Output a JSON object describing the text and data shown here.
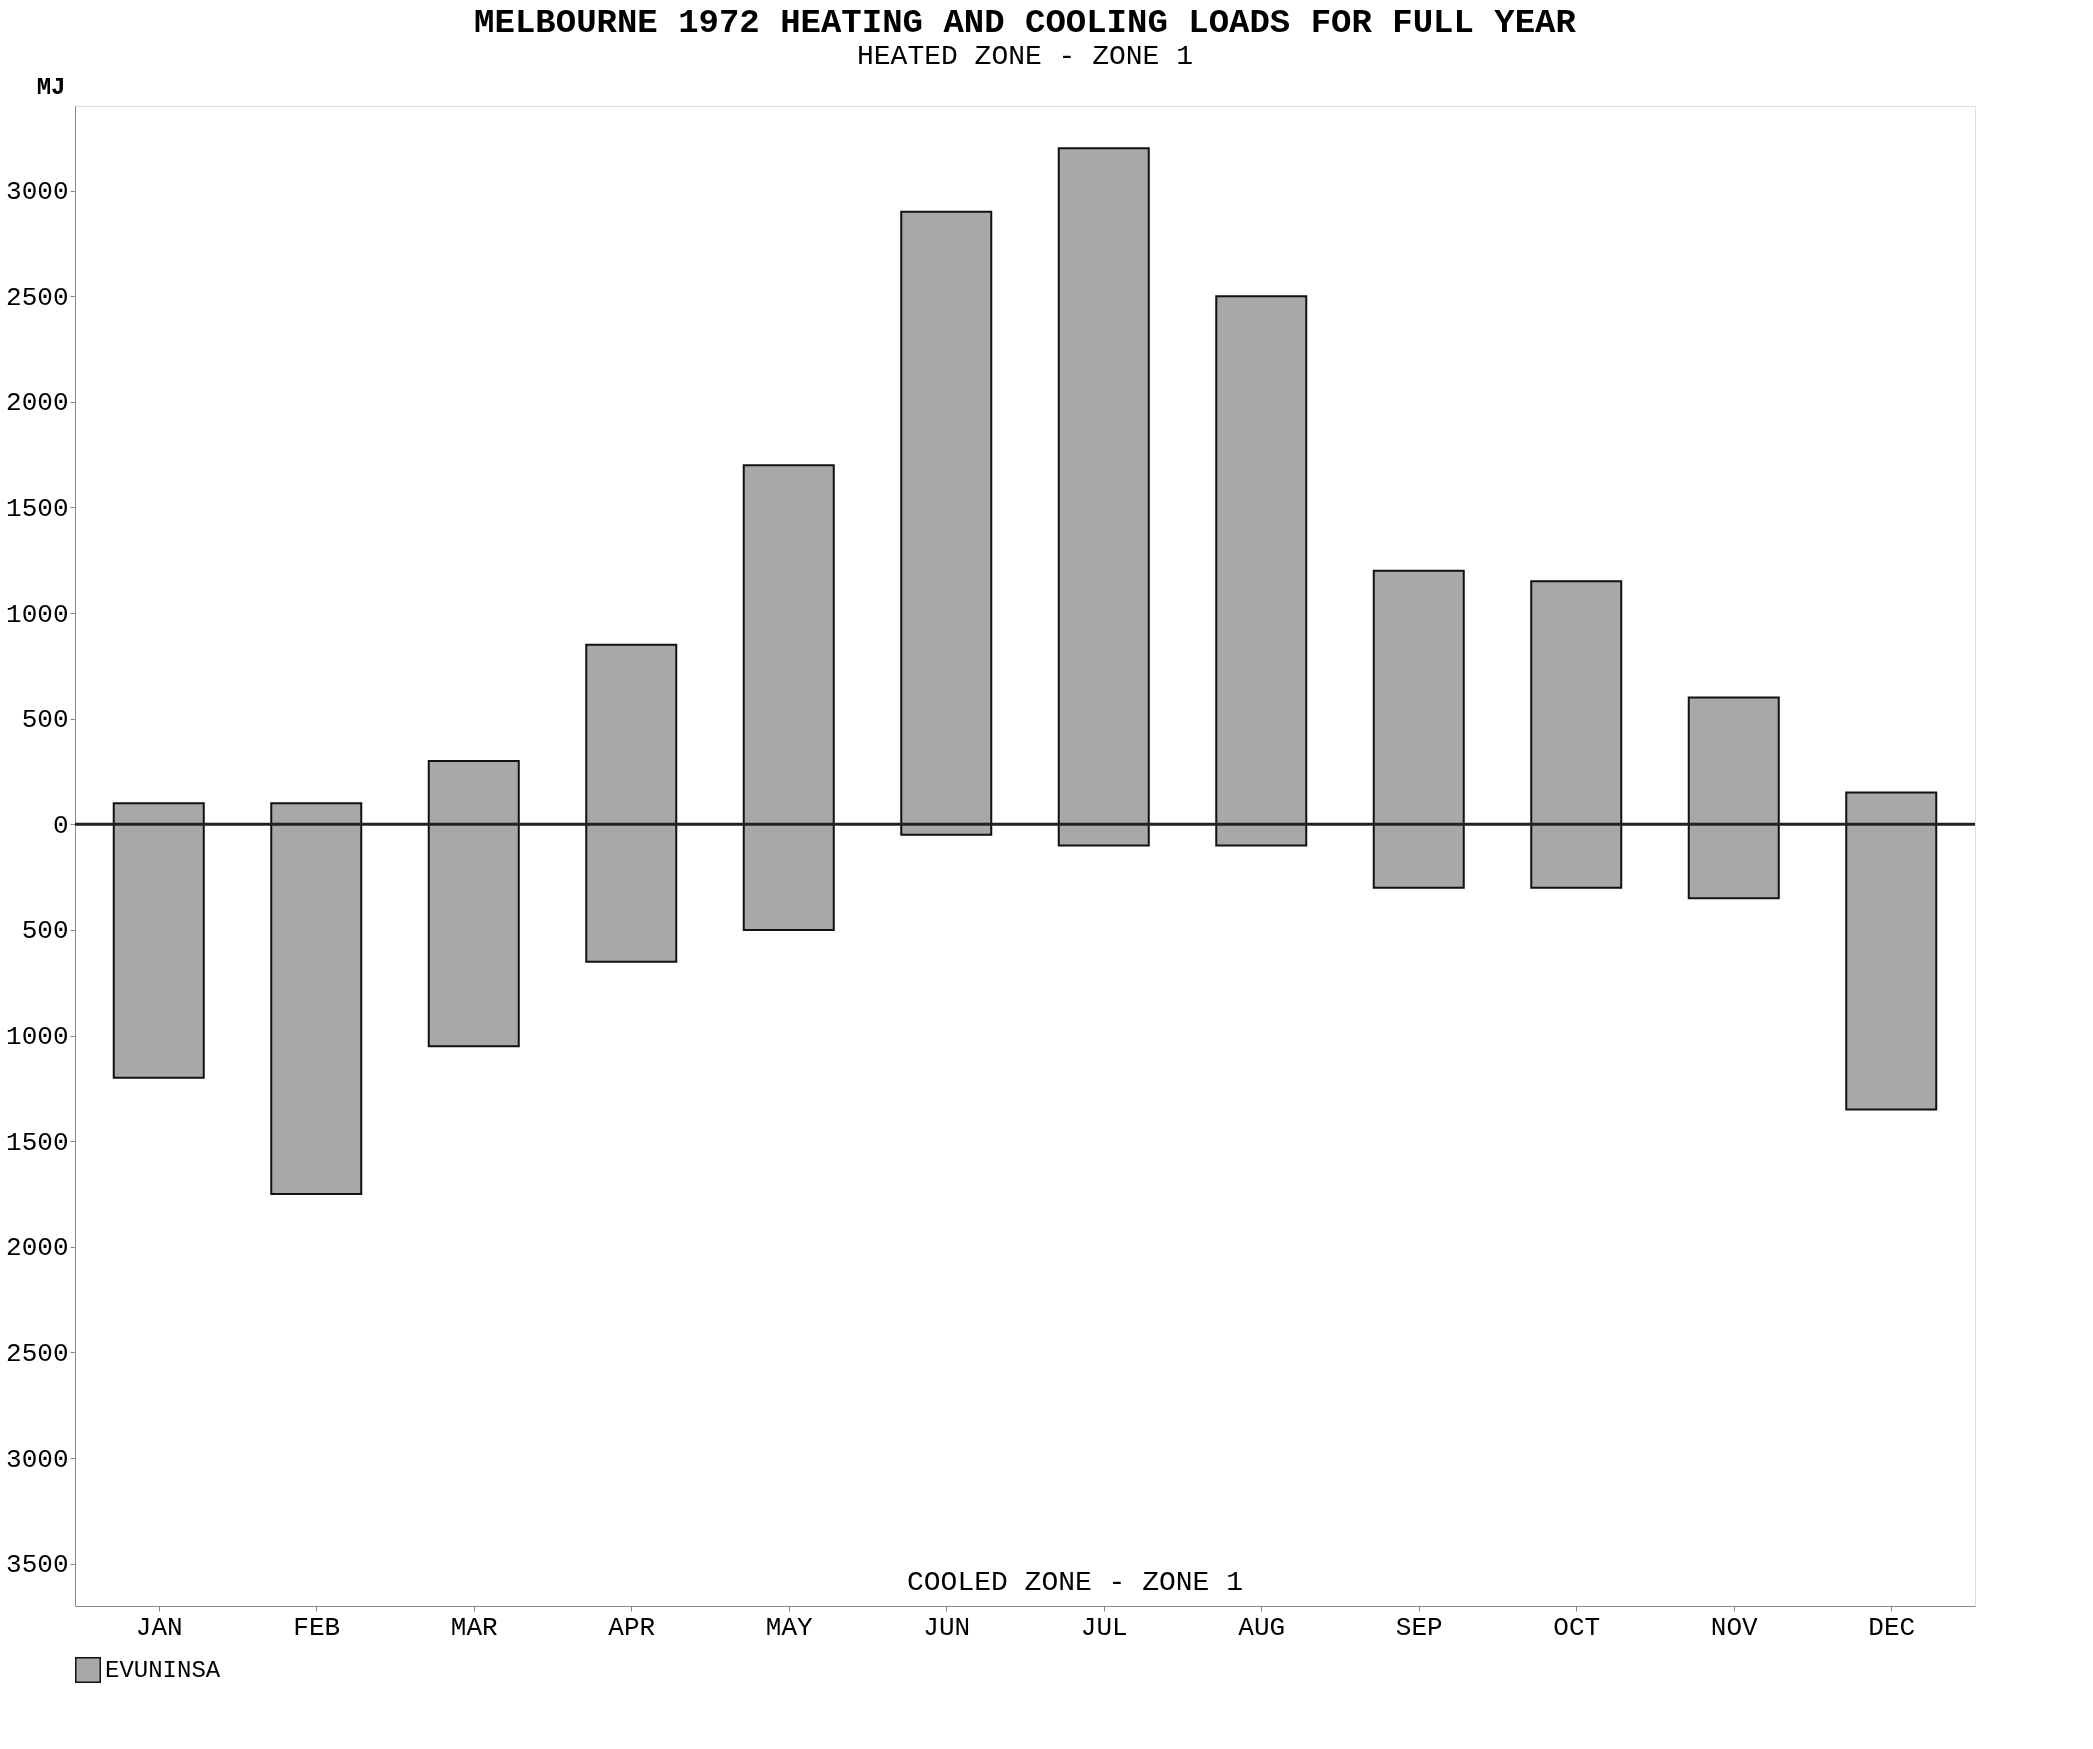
{
  "chart_data": {
    "type": "bar",
    "title": "MELBOURNE 1972  HEATING AND COOLING LOADS FOR FULL YEAR",
    "subtitle": "HEATED ZONE - ZONE 1",
    "ylabel": "MJ",
    "annotations": [
      "COOLED ZONE - ZONE 1"
    ],
    "categories": [
      "JAN",
      "FEB",
      "MAR",
      "APR",
      "MAY",
      "JUN",
      "JUL",
      "AUG",
      "SEP",
      "OCT",
      "NOV",
      "DEC"
    ],
    "series": [
      {
        "name": "EVUNINSA",
        "color": "#a8a8a8",
        "base": [
          -1200,
          -1750,
          -1050,
          -650,
          -500,
          -50,
          -100,
          -100,
          -300,
          -300,
          -350,
          -1350
        ],
        "values": [
          1300,
          1850,
          1350,
          1500,
          2200,
          2950,
          3300,
          2600,
          1500,
          1450,
          950,
          1500
        ]
      }
    ],
    "ylim": [
      -3700,
      3400
    ],
    "yticks": [
      {
        "value": -3500,
        "label": "3500"
      },
      {
        "value": -3000,
        "label": "3000"
      },
      {
        "value": -2500,
        "label": "2500"
      },
      {
        "value": -2000,
        "label": "2000"
      },
      {
        "value": -1500,
        "label": "1500"
      },
      {
        "value": -1000,
        "label": "1000"
      },
      {
        "value": -500,
        "label": "500"
      },
      0,
      500,
      1000,
      1500,
      2000,
      2500,
      3000
    ],
    "ref_lines": [
      {
        "axis": "y",
        "value": 0,
        "color": "#222222"
      }
    ],
    "legend": "bottom",
    "grid": false
  }
}
